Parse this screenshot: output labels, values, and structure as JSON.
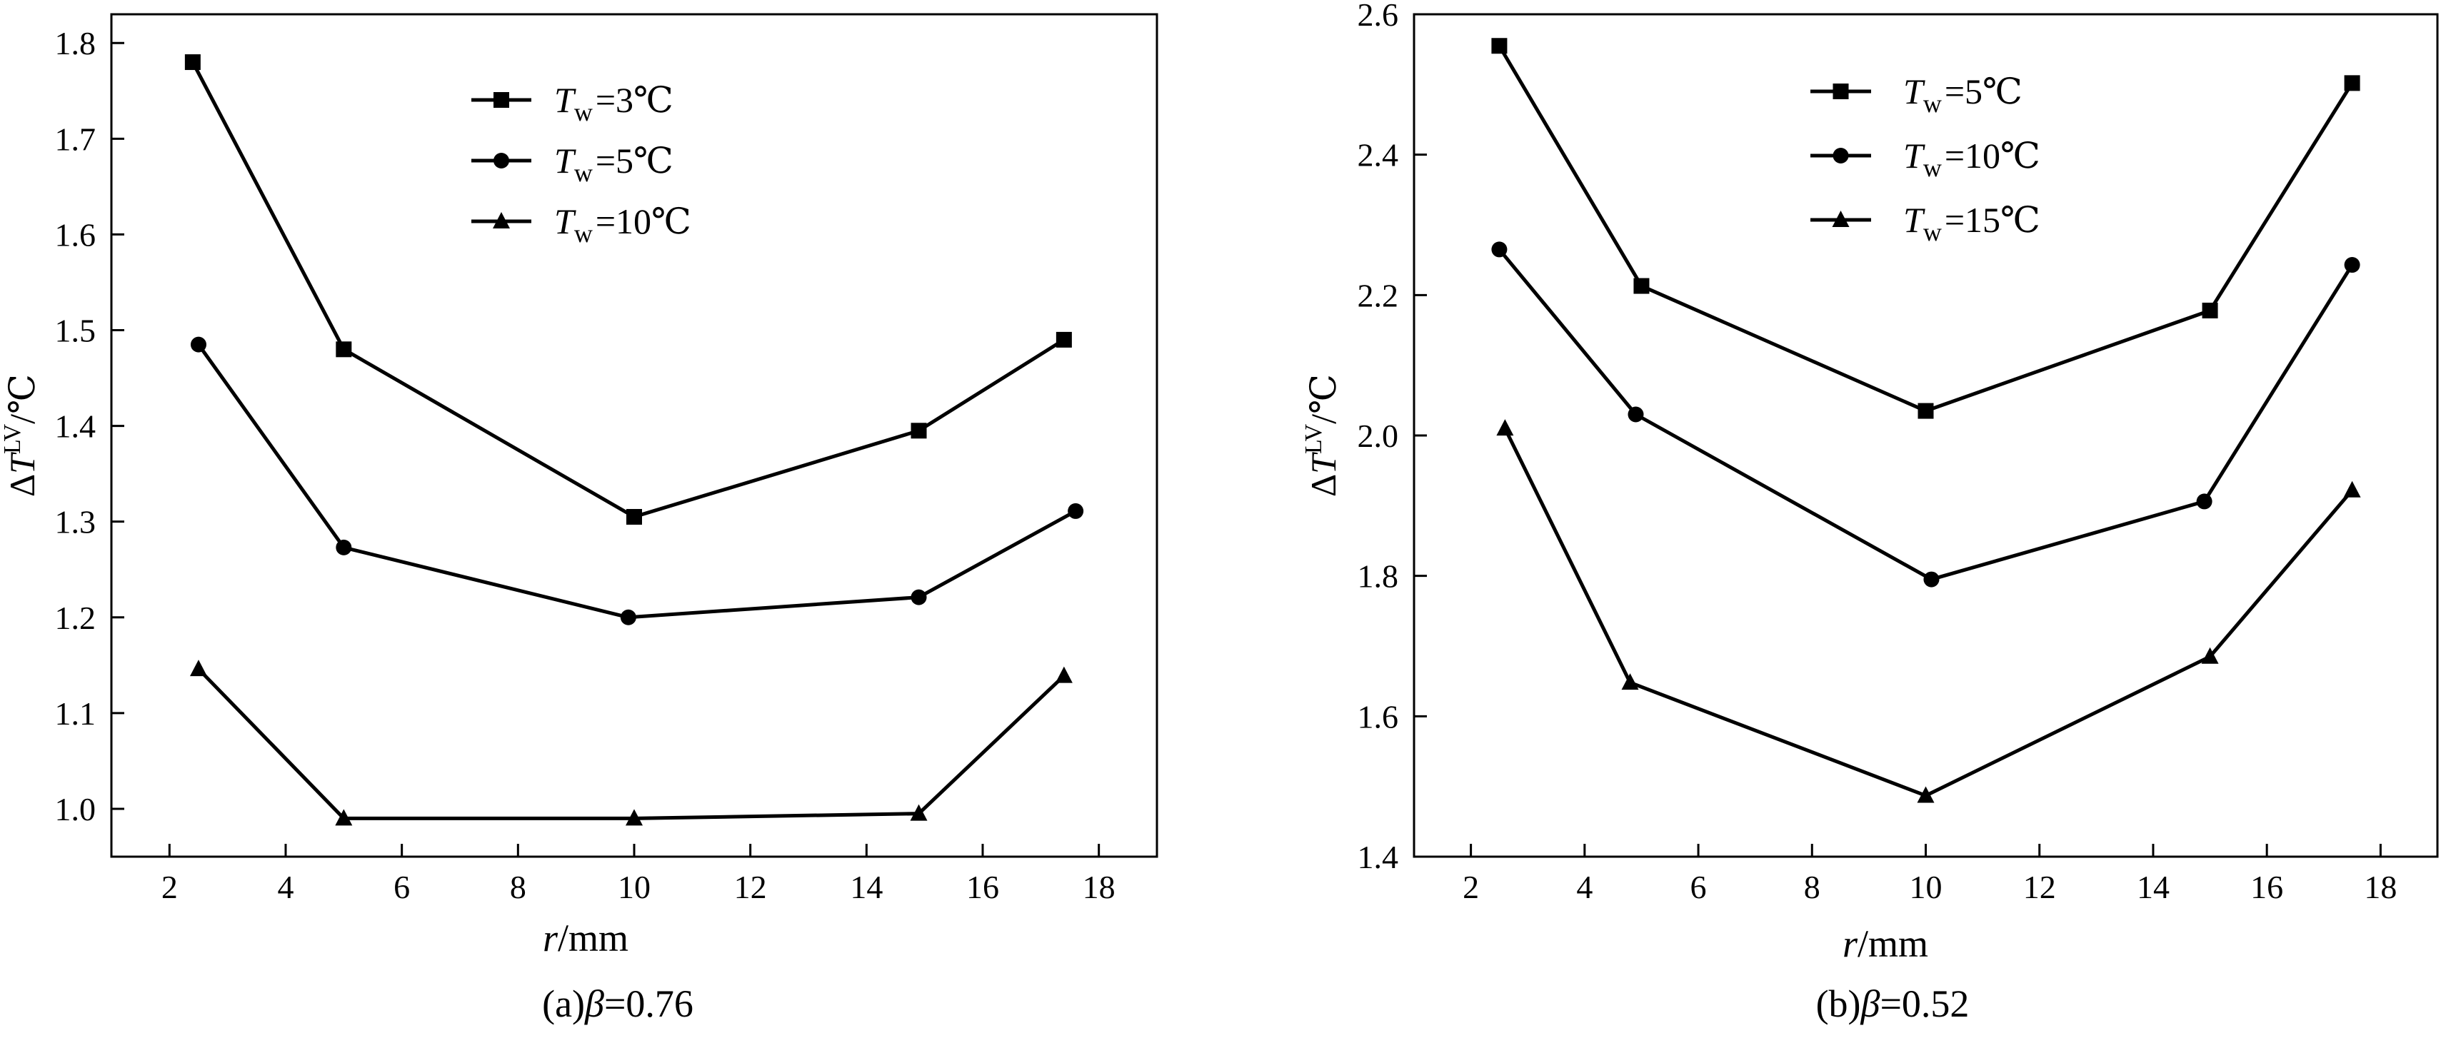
{
  "chart_data": [
    {
      "type": "line",
      "caption": "(a)β=0.76",
      "caption_prefix": "(a)",
      "caption_symbol": "β",
      "caption_value": "=0.76",
      "xlabel": "r/mm",
      "xlabel_var": "r",
      "xlabel_unit": "/mm",
      "ylabel": "ΔT^LV/℃",
      "ylabel_delta": "Δ",
      "ylabel_var": "T",
      "ylabel_sup": "LV",
      "ylabel_unit": "/℃",
      "xlim": [
        1,
        19
      ],
      "ylim": [
        0.95,
        1.83
      ],
      "xticks": [
        2,
        4,
        6,
        8,
        10,
        12,
        14,
        16,
        18
      ],
      "xtick_labels": [
        "2",
        "4",
        "6",
        "8",
        "10",
        "12",
        "14",
        "16",
        "18"
      ],
      "yticks": [
        1.0,
        1.1,
        1.2,
        1.3,
        1.4,
        1.5,
        1.6,
        1.7,
        1.8
      ],
      "ytick_labels": [
        "1.0",
        "1.1",
        "1.2",
        "1.3",
        "1.4",
        "1.5",
        "1.6",
        "1.7",
        "1.8"
      ],
      "grid": false,
      "legend_position": "top-center",
      "series": [
        {
          "legend_var": "T",
          "legend_sub": "w",
          "legend_value": "=3℃",
          "marker": "square",
          "x": [
            2.4,
            5.0,
            10.0,
            14.9,
            17.4
          ],
          "y": [
            1.78,
            1.48,
            1.305,
            1.395,
            1.49
          ]
        },
        {
          "legend_var": "T",
          "legend_sub": "w",
          "legend_value": "=5℃",
          "marker": "circle",
          "x": [
            2.5,
            5.0,
            9.9,
            14.9,
            17.6
          ],
          "y": [
            1.485,
            1.273,
            1.2,
            1.221,
            1.311
          ]
        },
        {
          "legend_var": "T",
          "legend_sub": "w",
          "legend_value": "=10℃",
          "marker": "triangle",
          "x": [
            2.5,
            5.0,
            10.0,
            14.9,
            17.4
          ],
          "y": [
            1.146,
            0.99,
            0.99,
            0.995,
            1.139
          ]
        }
      ]
    },
    {
      "type": "line",
      "caption": "(b)β=0.52",
      "caption_prefix": "(b)",
      "caption_symbol": "β",
      "caption_value": "=0.52",
      "xlabel": "r/mm",
      "xlabel_var": "r",
      "xlabel_unit": "/mm",
      "ylabel": "ΔT^LV/℃",
      "ylabel_delta": "Δ",
      "ylabel_var": "T",
      "ylabel_sup": "LV",
      "ylabel_unit": "/℃",
      "xlim": [
        1,
        19
      ],
      "ylim": [
        1.4,
        2.6
      ],
      "xticks": [
        2,
        4,
        6,
        8,
        10,
        12,
        14,
        16,
        18
      ],
      "xtick_labels": [
        "2",
        "4",
        "6",
        "8",
        "10",
        "12",
        "14",
        "16",
        "18"
      ],
      "yticks": [
        1.4,
        1.6,
        1.8,
        2.0,
        2.2,
        2.4,
        2.6
      ],
      "ytick_labels": [
        "1.4",
        "1.6",
        "1.8",
        "2.0",
        "2.2",
        "2.4",
        "2.6"
      ],
      "grid": false,
      "legend_position": "top-center",
      "series": [
        {
          "legend_var": "T",
          "legend_sub": "w",
          "legend_value": "=5℃",
          "marker": "square",
          "x": [
            2.5,
            5.0,
            10.0,
            15.0,
            17.5
          ],
          "y": [
            2.555,
            2.213,
            2.035,
            2.178,
            2.502
          ]
        },
        {
          "legend_var": "T",
          "legend_sub": "w",
          "legend_value": "=10℃",
          "marker": "circle",
          "x": [
            2.5,
            4.9,
            10.1,
            14.9,
            17.5
          ],
          "y": [
            2.265,
            2.03,
            1.795,
            1.906,
            2.243
          ]
        },
        {
          "legend_var": "T",
          "legend_sub": "w",
          "legend_value": "=15℃",
          "marker": "triangle",
          "x": [
            2.6,
            4.8,
            10.0,
            15.0,
            17.5
          ],
          "y": [
            2.01,
            1.648,
            1.487,
            1.685,
            1.922
          ]
        }
      ]
    }
  ]
}
